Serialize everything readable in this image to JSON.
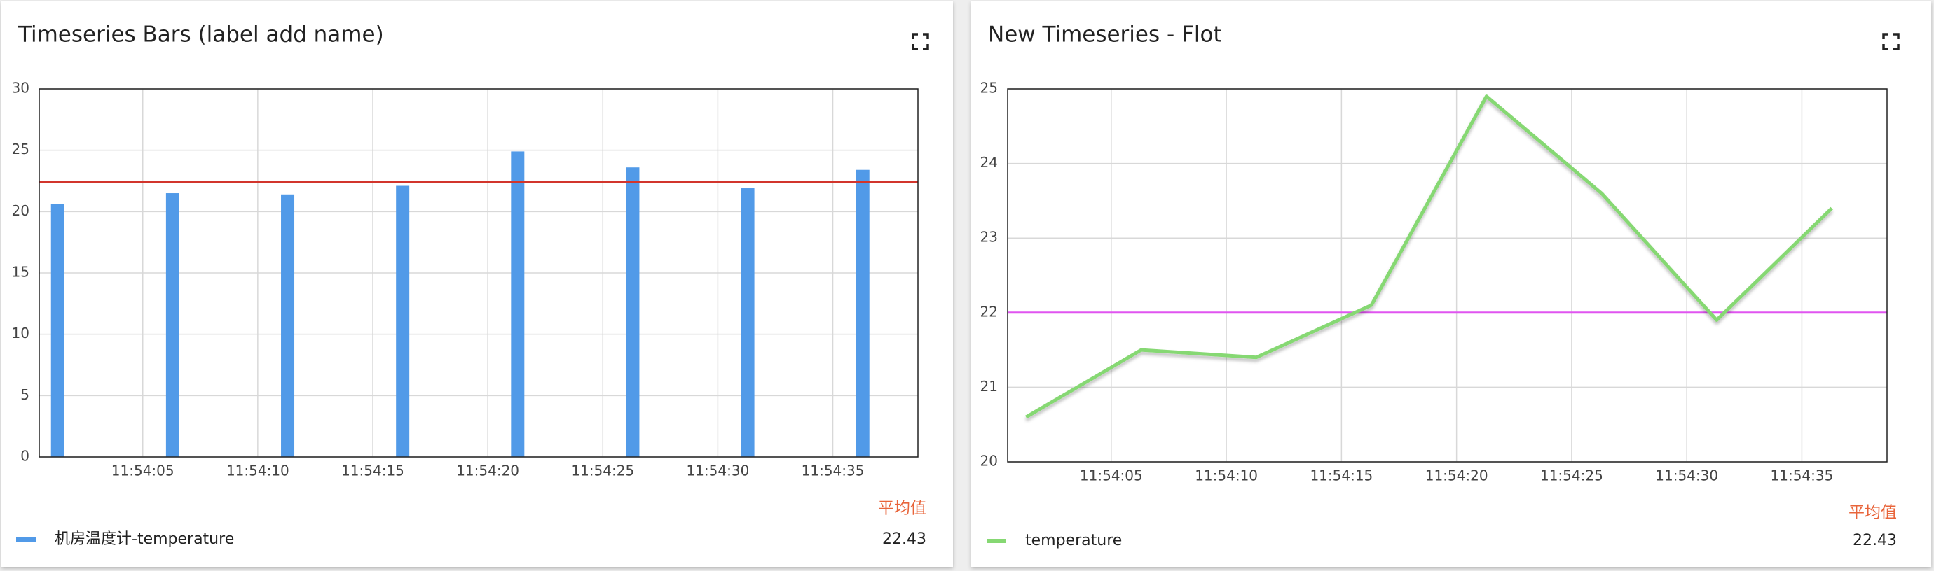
{
  "chart_data": [
    {
      "type": "bar",
      "title": "Timeseries Bars (label add name)",
      "x": [
        "11:54:01.3",
        "11:54:06.3",
        "11:54:11.3",
        "11:54:16.3",
        "11:54:21.3",
        "11:54:26.3",
        "11:54:31.3",
        "11:54:36.3"
      ],
      "series": [
        {
          "name": "机房温度计-temperature",
          "color": "#519ae8",
          "values": [
            20.6,
            21.5,
            21.4,
            22.1,
            24.9,
            23.6,
            21.9,
            23.4
          ],
          "average": 22.43
        }
      ],
      "xlim": [
        "11:54:00.5",
        "11:54:38.7"
      ],
      "xticks": [
        "11:54:05",
        "11:54:10",
        "11:54:15",
        "11:54:20",
        "11:54:25",
        "11:54:30",
        "11:54:35"
      ],
      "ylim": [
        0,
        30
      ],
      "yticks": [
        0,
        5,
        10,
        15,
        20,
        25,
        30
      ],
      "grid": true,
      "reference_line": {
        "value": 22.43,
        "color": "#d2352c"
      },
      "legend_header": "平均值"
    },
    {
      "type": "line",
      "title": "New Timeseries - Flot",
      "x": [
        "11:54:01.3",
        "11:54:06.3",
        "11:54:11.3",
        "11:54:16.3",
        "11:54:21.3",
        "11:54:26.3",
        "11:54:31.3",
        "11:54:36.3"
      ],
      "series": [
        {
          "name": "temperature",
          "color": "#86d873",
          "values": [
            20.6,
            21.5,
            21.4,
            22.1,
            24.9,
            23.6,
            21.9,
            23.4
          ],
          "average": 22.43
        }
      ],
      "xlim": [
        "11:54:00.5",
        "11:54:38.7"
      ],
      "xticks": [
        "11:54:05",
        "11:54:10",
        "11:54:15",
        "11:54:20",
        "11:54:25",
        "11:54:30",
        "11:54:35"
      ],
      "ylim": [
        20,
        25
      ],
      "yticks": [
        20,
        21,
        22,
        23,
        24,
        25
      ],
      "grid": true,
      "reference_line": {
        "value": 22,
        "color": "#e055f0"
      },
      "legend_header": "平均值"
    }
  ]
}
